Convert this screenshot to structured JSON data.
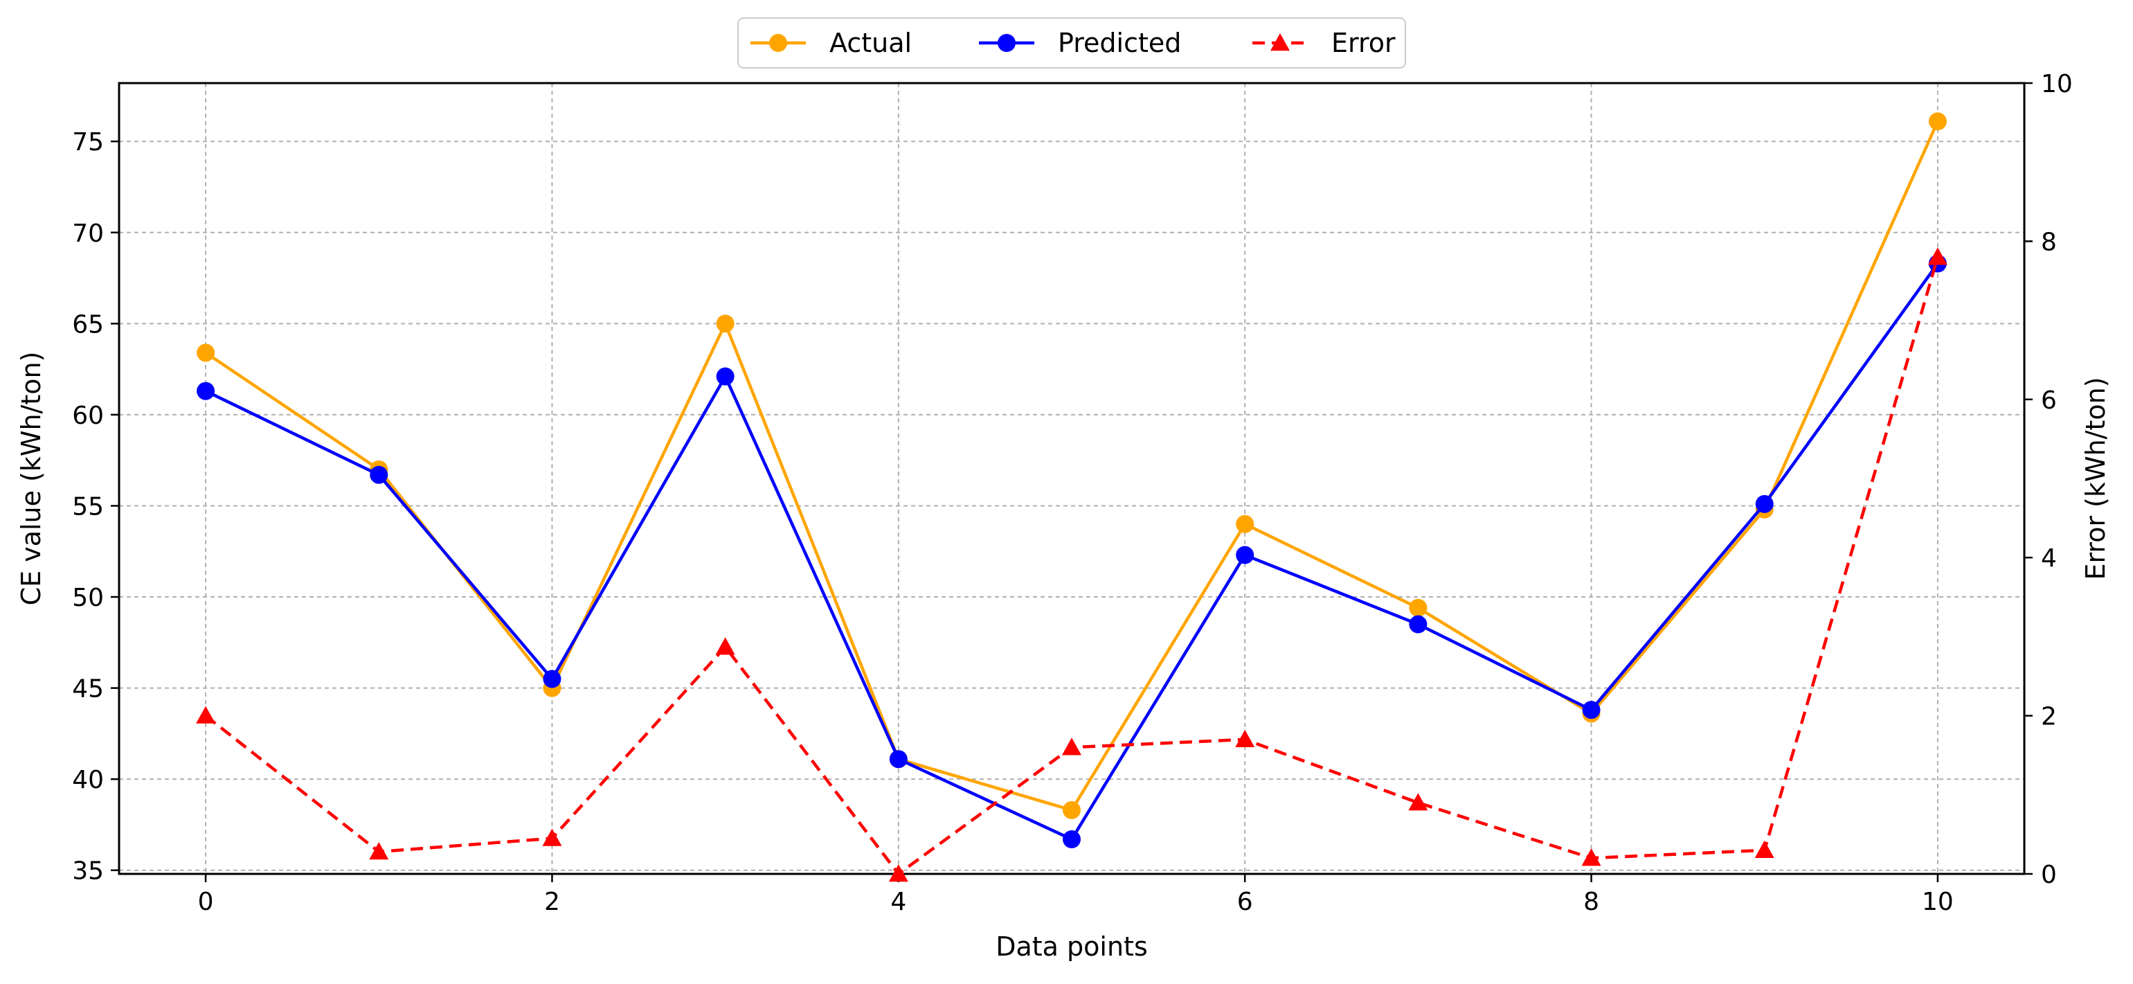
{
  "chart_data": {
    "type": "line",
    "title": "",
    "xlabel": "Data points",
    "ylabel": "CE value (kWh/ton)",
    "y2label": "Error (kWh/ton)",
    "x": [
      0,
      1,
      2,
      3,
      4,
      5,
      6,
      7,
      8,
      9,
      10
    ],
    "xlim": [
      -0.5,
      10.5
    ],
    "ylim": [
      34.8,
      78.2
    ],
    "y2lim": [
      0,
      10
    ],
    "xticks": [
      "0",
      "2",
      "4",
      "6",
      "8",
      "10"
    ],
    "yticks": [
      "35",
      "40",
      "45",
      "50",
      "55",
      "60",
      "65",
      "70",
      "75"
    ],
    "y2ticks": [
      "0",
      "2",
      "4",
      "6",
      "8",
      "10"
    ],
    "grid": true,
    "legend_position": "top-center",
    "series": [
      {
        "name": "Actual",
        "axis": "left",
        "color": "#FFA500",
        "marker": "circle",
        "linestyle": "solid",
        "values": [
          63.4,
          57.0,
          45.0,
          65.0,
          41.1,
          38.3,
          54.0,
          49.4,
          43.6,
          54.8,
          76.1
        ]
      },
      {
        "name": "Predicted",
        "axis": "left",
        "color": "#0000FF",
        "marker": "circle",
        "linestyle": "solid",
        "values": [
          61.3,
          56.7,
          45.5,
          62.1,
          41.1,
          36.7,
          52.3,
          48.5,
          43.8,
          55.1,
          68.3
        ]
      },
      {
        "name": "Error",
        "axis": "right",
        "color": "#FF0000",
        "marker": "triangle",
        "linestyle": "dashed",
        "values": [
          2.0,
          0.28,
          0.45,
          2.87,
          0.0,
          1.6,
          1.7,
          0.9,
          0.2,
          0.3,
          7.8
        ]
      }
    ]
  }
}
